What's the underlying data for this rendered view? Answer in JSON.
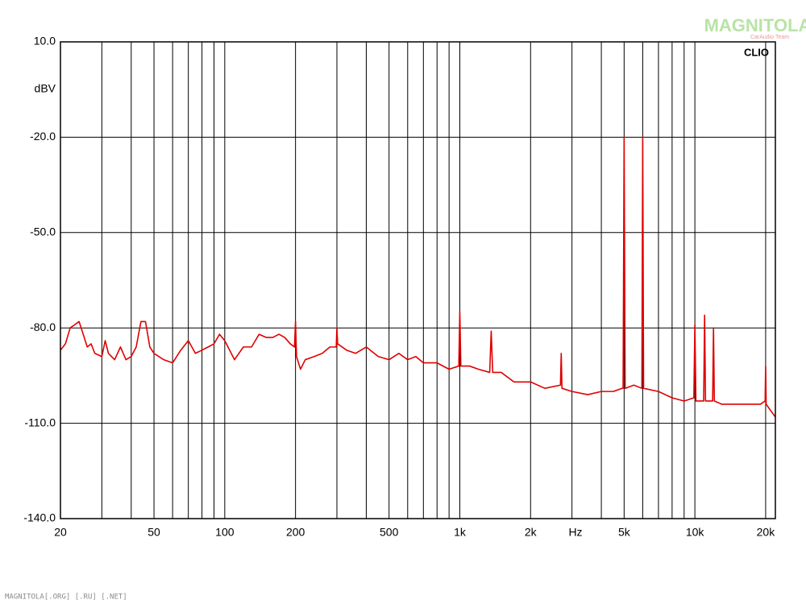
{
  "chart_data": {
    "type": "line",
    "brand": "CLIO",
    "logo": "MAGNITOLA",
    "logo_sub": "CarAudio Team",
    "footer": "MAGNITOLA[.ORG] [.RU] [.NET]",
    "y_label": "dBV",
    "x_label": "Hz",
    "color": "#e00000",
    "log_x": true,
    "grid": true,
    "xlim": [
      20,
      22000
    ],
    "ylim": [
      -140,
      10
    ],
    "yticks": [
      {
        "value": 10,
        "label": "10.0"
      },
      {
        "value": -20,
        "label": "-20.0"
      },
      {
        "value": -50,
        "label": "-50.0"
      },
      {
        "value": -80,
        "label": "-80.0"
      },
      {
        "value": -110,
        "label": "-110.0"
      },
      {
        "value": -140,
        "label": "-140.0"
      }
    ],
    "xticks": [
      20,
      50,
      100,
      200,
      500,
      {
        "value": 1000,
        "label": "1k"
      },
      {
        "value": 2000,
        "label": "2k"
      },
      {
        "value": 5000,
        "label": "5k"
      },
      {
        "value": 10000,
        "label": "10k"
      },
      {
        "value": 20000,
        "label": "20k"
      }
    ],
    "xgrid": [
      20,
      30,
      40,
      50,
      60,
      70,
      80,
      90,
      100,
      200,
      300,
      400,
      500,
      600,
      700,
      800,
      900,
      1000,
      2000,
      3000,
      4000,
      5000,
      6000,
      7000,
      8000,
      9000,
      10000,
      20000
    ],
    "x": [
      20,
      21,
      22,
      23,
      24,
      25,
      26,
      27,
      28,
      30,
      31,
      32,
      34,
      36,
      38,
      40,
      42,
      44,
      46,
      48,
      50,
      55,
      60,
      65,
      70,
      75,
      80,
      85,
      90,
      95,
      100,
      110,
      120,
      130,
      140,
      150,
      160,
      170,
      180,
      190,
      198,
      200,
      202,
      210,
      220,
      240,
      260,
      280,
      298,
      300,
      302,
      330,
      360,
      400,
      450,
      500,
      550,
      600,
      650,
      700,
      800,
      900,
      990,
      1000,
      1010,
      1100,
      1200,
      1340,
      1360,
      1380,
      1500,
      1700,
      2000,
      2300,
      2680,
      2700,
      2720,
      3000,
      3500,
      4000,
      4500,
      4900,
      4950,
      5000,
      5050,
      5500,
      5950,
      6000,
      6050,
      7000,
      8000,
      9000,
      9900,
      10000,
      10100,
      10900,
      11000,
      11100,
      11900,
      12000,
      12100,
      13000,
      15000,
      17000,
      19000,
      19900,
      20000,
      20100,
      21000,
      22000
    ],
    "values": [
      -87,
      -85,
      -80,
      -79,
      -78,
      -82,
      -86,
      -85,
      -88,
      -89,
      -84,
      -88,
      -90,
      -86,
      -90,
      -89,
      -86,
      -78,
      -78,
      -86,
      -88,
      -90,
      -91,
      -87,
      -84,
      -88,
      -87,
      -86,
      -85,
      -82,
      -84,
      -90,
      -86,
      -86,
      -82,
      -83,
      -83,
      -82,
      -83,
      -85,
      -86,
      -78,
      -89,
      -93,
      -90,
      -89,
      -88,
      -86,
      -86,
      -80,
      -85,
      -87,
      -88,
      -86,
      -89,
      -90,
      -88,
      -90,
      -89,
      -91,
      -91,
      -93,
      -92,
      -75,
      -92,
      -92,
      -93,
      -94,
      -81,
      -94,
      -94,
      -97,
      -97,
      -99,
      -98,
      -88,
      -99,
      -100,
      -101,
      -100,
      -100,
      -99,
      -99,
      -20,
      -99,
      -98,
      -99,
      -20,
      -99,
      -100,
      -102,
      -103,
      -102,
      -79,
      -103,
      -103,
      -76,
      -103,
      -103,
      -80,
      -103,
      -104,
      -104,
      -104,
      -104,
      -103,
      -92,
      -104,
      -106,
      -108
    ]
  }
}
